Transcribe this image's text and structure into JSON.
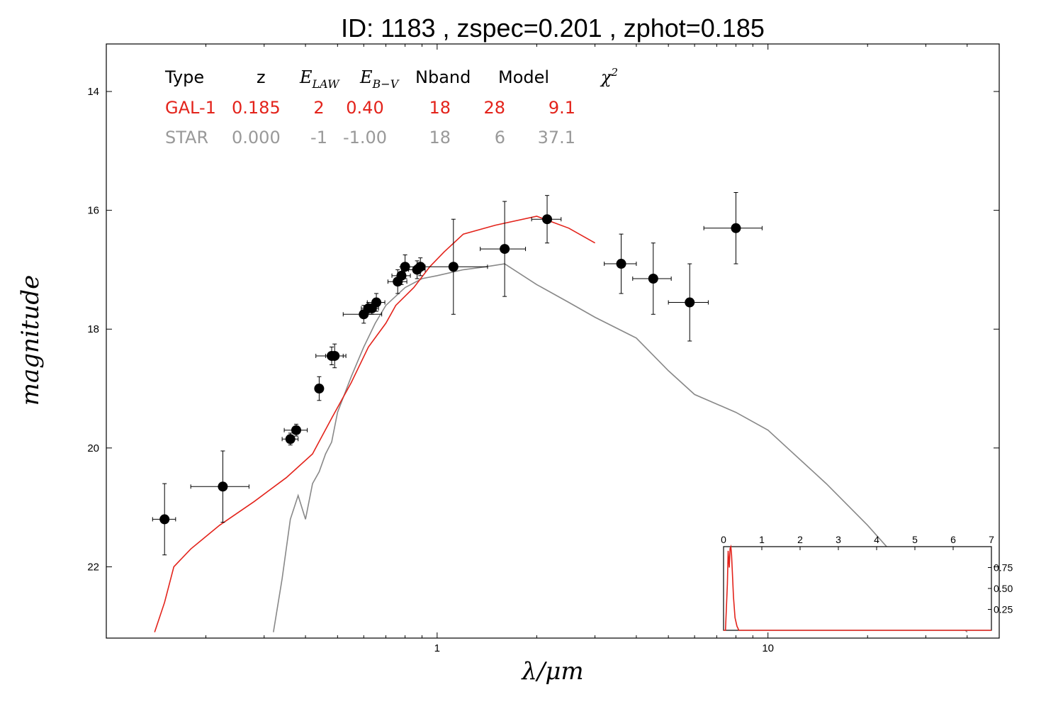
{
  "chart_data": {
    "type": "scatter",
    "title": "ID:  1183  , zspec=0.201 , zphot=0.185",
    "xlabel": "λ/μm",
    "ylabel": "magnitude",
    "xscale": "log",
    "xlim": [
      0.1,
      50
    ],
    "ylim": [
      23.2,
      13.2
    ],
    "y_inverted": true,
    "xticks": [
      {
        "value": 1,
        "label": "1"
      },
      {
        "value": 10,
        "label": "10"
      }
    ],
    "yticks": [
      {
        "value": 14,
        "label": "14"
      },
      {
        "value": 16,
        "label": "16"
      },
      {
        "value": 18,
        "label": "18"
      },
      {
        "value": 20,
        "label": "20"
      },
      {
        "value": 22,
        "label": "22"
      }
    ],
    "grid": false,
    "legend_table": {
      "headers": [
        "Type",
        "z",
        "E_LAW",
        "E_B-V",
        "Nband",
        "Model",
        "χ²"
      ],
      "rows": [
        {
          "color": "#e3231b",
          "cells": [
            "GAL-1",
            "0.185",
            "2",
            "0.40",
            "18",
            "28",
            "9.1"
          ]
        },
        {
          "color": "#999999",
          "cells": [
            "STAR",
            "0.000",
            "-1",
            "-1.00",
            "18",
            "6",
            "37.1"
          ]
        }
      ]
    },
    "series": [
      {
        "type": "line",
        "color": "#e3231b",
        "x": [
          0.14,
          0.15,
          0.16,
          0.18,
          0.22,
          0.28,
          0.35,
          0.42,
          0.48,
          0.55,
          0.62,
          0.7,
          0.75,
          0.85,
          0.95,
          1.05,
          1.2,
          1.5,
          2.0,
          2.5,
          3.0
        ],
        "y": [
          23.1,
          22.6,
          22.0,
          21.7,
          21.3,
          20.9,
          20.5,
          20.1,
          19.5,
          18.9,
          18.3,
          17.9,
          17.6,
          17.3,
          16.95,
          16.7,
          16.4,
          16.25,
          16.1,
          16.3,
          16.55
        ]
      },
      {
        "type": "line",
        "color": "#888888",
        "x": [
          0.32,
          0.34,
          0.36,
          0.38,
          0.4,
          0.42,
          0.44,
          0.46,
          0.48,
          0.5,
          0.55,
          0.6,
          0.65,
          0.7,
          0.8,
          0.9,
          1.0,
          1.2,
          1.4,
          1.6,
          2.0,
          2.5,
          3.0,
          4.0,
          5.0,
          6.0,
          8.0,
          10.0,
          15.0,
          20.0,
          30.0,
          40.0
        ],
        "y": [
          23.1,
          22.2,
          21.2,
          20.8,
          21.2,
          20.6,
          20.4,
          20.1,
          19.9,
          19.4,
          18.8,
          18.3,
          17.9,
          17.6,
          17.3,
          17.15,
          17.1,
          17.0,
          16.95,
          16.9,
          17.25,
          17.55,
          17.8,
          18.15,
          18.7,
          19.1,
          19.4,
          19.7,
          20.6,
          21.3,
          22.4,
          23.1
        ]
      }
    ],
    "points": [
      {
        "x": 0.15,
        "y": 21.2,
        "xerr": 0.012,
        "yerr": 0.6
      },
      {
        "x": 0.225,
        "y": 20.65,
        "xerr": 0.045,
        "yerr": 0.6
      },
      {
        "x": 0.36,
        "y": 19.85,
        "xerr": 0.02,
        "yerr": 0.1
      },
      {
        "x": 0.375,
        "y": 19.7,
        "xerr": 0.03,
        "yerr": 0.1
      },
      {
        "x": 0.44,
        "y": 19.0,
        "xerr": 0.01,
        "yerr": 0.2
      },
      {
        "x": 0.48,
        "y": 18.45,
        "xerr": 0.05,
        "yerr": 0.15
      },
      {
        "x": 0.49,
        "y": 18.45,
        "xerr": 0.03,
        "yerr": 0.2
      },
      {
        "x": 0.6,
        "y": 17.75,
        "xerr": 0.08,
        "yerr": 0.15
      },
      {
        "x": 0.62,
        "y": 17.65,
        "xerr": 0.03,
        "yerr": 0.1
      },
      {
        "x": 0.635,
        "y": 17.65,
        "xerr": 0.03,
        "yerr": 0.1
      },
      {
        "x": 0.655,
        "y": 17.55,
        "xerr": 0.04,
        "yerr": 0.15
      },
      {
        "x": 0.76,
        "y": 17.2,
        "xerr": 0.05,
        "yerr": 0.2
      },
      {
        "x": 0.78,
        "y": 17.1,
        "xerr": 0.05,
        "yerr": 0.15
      },
      {
        "x": 0.8,
        "y": 16.95,
        "xerr": 0.02,
        "yerr": 0.2
      },
      {
        "x": 0.87,
        "y": 17.0,
        "xerr": 0.05,
        "yerr": 0.15
      },
      {
        "x": 0.89,
        "y": 16.95,
        "xerr": 0.03,
        "yerr": 0.15
      },
      {
        "x": 1.12,
        "y": 16.95,
        "xerr": 0.3,
        "yerr": 0.8
      },
      {
        "x": 1.6,
        "y": 16.65,
        "xerr": 0.25,
        "yerr": 0.8
      },
      {
        "x": 2.15,
        "y": 16.15,
        "xerr": 0.22,
        "yerr": 0.4
      },
      {
        "x": 3.6,
        "y": 16.9,
        "xerr": 0.4,
        "yerr": 0.5
      },
      {
        "x": 4.5,
        "y": 17.15,
        "xerr": 0.6,
        "yerr": 0.6
      },
      {
        "x": 5.8,
        "y": 17.55,
        "xerr": 0.8,
        "yerr": 0.65
      },
      {
        "x": 8.0,
        "y": 16.3,
        "xerr": 1.6,
        "yerr": 0.6
      }
    ],
    "inset": {
      "type": "line",
      "color": "#e3231b",
      "xlim": [
        0,
        7
      ],
      "ylim": [
        0,
        1.0
      ],
      "xticks": [
        {
          "value": 0,
          "label": "0"
        },
        {
          "value": 1,
          "label": "1"
        },
        {
          "value": 2,
          "label": "2"
        },
        {
          "value": 3,
          "label": "3"
        },
        {
          "value": 4,
          "label": "4"
        },
        {
          "value": 5,
          "label": "5"
        },
        {
          "value": 6,
          "label": "6"
        },
        {
          "value": 7,
          "label": "7"
        }
      ],
      "yticks": [
        {
          "value": 0.25,
          "label": "0.25"
        },
        {
          "value": 0.5,
          "label": "0.50"
        },
        {
          "value": 0.75,
          "label": "0.75"
        }
      ],
      "x": [
        0,
        0.05,
        0.1,
        0.12,
        0.15,
        0.17,
        0.19,
        0.21,
        0.23,
        0.26,
        0.3,
        0.35,
        0.4,
        0.5,
        7
      ],
      "y": [
        0,
        0.0,
        0.55,
        0.95,
        0.75,
        0.98,
        1.0,
        0.9,
        0.7,
        0.4,
        0.15,
        0.05,
        0.0,
        0.0,
        0.0
      ]
    }
  }
}
